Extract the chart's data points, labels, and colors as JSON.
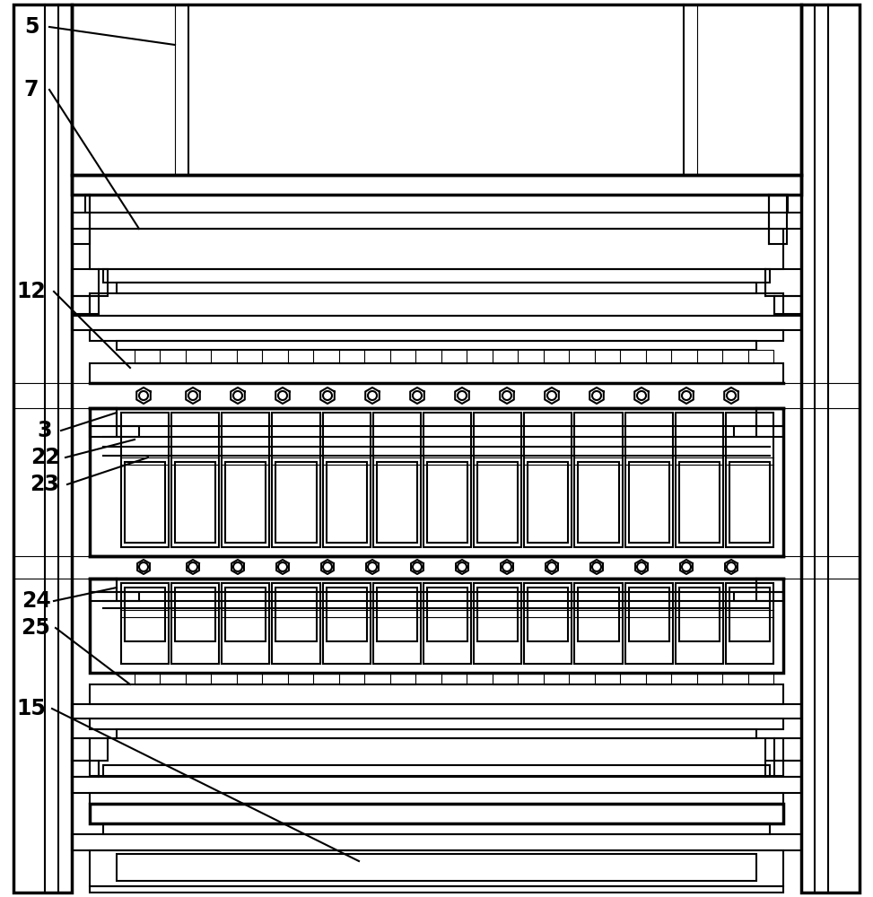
{
  "bg_color": "#ffffff",
  "line_color": "#000000",
  "lw": 1.5,
  "lw_thick": 2.5,
  "lw_thin": 0.8,
  "fig_width": 9.73,
  "fig_height": 10.0,
  "label_fontsize": 17
}
